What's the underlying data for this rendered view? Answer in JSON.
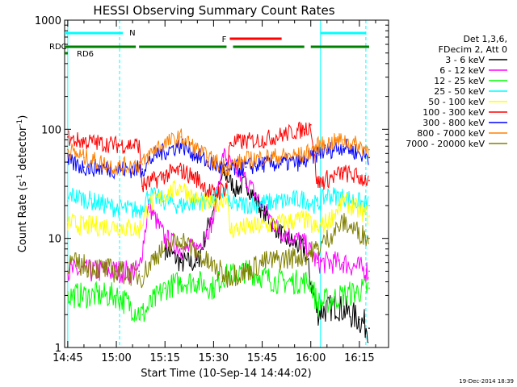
{
  "chart_data": {
    "type": "line",
    "title": "HESSI Observing Summary Count Rates",
    "xlabel": "Start Time (10-Sep-14 14:44:02)",
    "ylabel": "Count Rate (s⁻¹ detector⁻¹)",
    "y_scale": "log",
    "ylim": [
      1,
      1000
    ],
    "xlim": [
      "14:44:02",
      "16:24:00"
    ],
    "x_ticks": [
      "14:45",
      "15:00",
      "15:15",
      "15:30",
      "15:45",
      "16:00",
      "16:15"
    ],
    "y_ticks": [
      "1",
      "10",
      "100",
      "1000"
    ],
    "grid": false,
    "legend_position": "right",
    "legend_header": [
      "Det 1,3,6,",
      "FDecim 2, Att 0"
    ],
    "series": [
      {
        "name": "3 - 6 keV",
        "color": "#000000",
        "x": [
          "14:45",
          "15:00",
          "15:10",
          "15:15",
          "15:20",
          "15:25",
          "15:28",
          "15:33",
          "15:37",
          "15:40",
          "15:45",
          "15:52",
          "15:58",
          "16:02",
          "16:08",
          "16:15",
          "16:18"
        ],
        "y": [
          null,
          null,
          null,
          8,
          6,
          6,
          12,
          40,
          28,
          32,
          18,
          10,
          8,
          2.1,
          2.4,
          1.8,
          1.5
        ]
      },
      {
        "name": "6 - 12 keV",
        "color": "#ff00ff",
        "x": [
          "14:45",
          "15:00",
          "15:07",
          "15:10",
          "15:15",
          "15:20",
          "15:25",
          "15:30",
          "15:33",
          "15:37",
          "15:40",
          "15:45",
          "15:50",
          "15:58",
          "16:02",
          "16:10",
          "16:18"
        ],
        "y": [
          5,
          5,
          5,
          20,
          10,
          8,
          8,
          15,
          60,
          40,
          35,
          20,
          12,
          9,
          6,
          6,
          5
        ]
      },
      {
        "name": "12 - 25 keV",
        "color": "#00ff00",
        "x": [
          "14:45",
          "15:00",
          "15:08",
          "15:15",
          "15:20",
          "15:25",
          "15:30",
          "15:33",
          "15:40",
          "15:50",
          "16:00",
          "16:02",
          "16:10",
          "16:18"
        ],
        "y": [
          3,
          3,
          2,
          3.5,
          4,
          4,
          3.5,
          4.5,
          5,
          4,
          4,
          2.5,
          3,
          3.5
        ]
      },
      {
        "name": "25 - 50 keV",
        "color": "#00ffff",
        "x": [
          "14:45",
          "14:46",
          "15:00",
          "15:07",
          "15:10",
          "15:15",
          "15:20",
          "15:25",
          "15:30",
          "15:34",
          "15:35",
          "15:45",
          "15:58",
          "16:02",
          "16:05",
          "16:10",
          "16:18"
        ],
        "y": [
          22,
          25,
          19,
          18,
          25,
          22,
          20,
          22,
          23,
          28,
          20,
          21,
          23,
          20,
          25,
          24,
          20
        ]
      },
      {
        "name": "50 - 100 keV",
        "color": "#ffff00",
        "x": [
          "14:45",
          "14:50",
          "15:00",
          "15:07",
          "15:10",
          "15:15",
          "15:20",
          "15:25",
          "15:30",
          "15:34",
          "15:35",
          "15:45",
          "15:58",
          "16:02",
          "16:06",
          "16:10",
          "16:18"
        ],
        "y": [
          14,
          13,
          13,
          12,
          20,
          25,
          30,
          22,
          20,
          25,
          12,
          13,
          15,
          12,
          15,
          22,
          16
        ]
      },
      {
        "name": "100 - 300 keV",
        "color": "#ff0000",
        "x": [
          "14:45",
          "14:46",
          "15:00",
          "15:07",
          "15:08",
          "15:15",
          "15:20",
          "15:25",
          "15:30",
          "15:34",
          "15:35",
          "15:45",
          "15:58",
          "16:00",
          "16:02",
          "16:10",
          "16:18"
        ],
        "y": [
          85,
          80,
          72,
          72,
          30,
          38,
          42,
          35,
          25,
          30,
          75,
          80,
          100,
          110,
          32,
          40,
          34
        ]
      },
      {
        "name": "300 - 800 keV",
        "color": "#0000ff",
        "x": [
          "14:45",
          "14:50",
          "15:00",
          "15:08",
          "15:12",
          "15:20",
          "15:28",
          "15:34",
          "15:40",
          "15:45",
          "15:58",
          "16:02",
          "16:10",
          "16:18"
        ],
        "y": [
          50,
          45,
          43,
          43,
          58,
          72,
          50,
          42,
          45,
          48,
          50,
          60,
          70,
          55
        ]
      },
      {
        "name": "800 - 7000 keV",
        "color": "#ff8000",
        "x": [
          "14:45",
          "14:50",
          "15:00",
          "15:08",
          "15:12",
          "15:20",
          "15:28",
          "15:34",
          "15:40",
          "15:45",
          "15:58",
          "16:02",
          "16:10",
          "16:18"
        ],
        "y": [
          65,
          55,
          45,
          48,
          68,
          85,
          55,
          45,
          52,
          55,
          58,
          70,
          80,
          65
        ]
      },
      {
        "name": "7000 - 20000 keV",
        "color": "#808000",
        "x": [
          "14:45",
          "15:00",
          "15:08",
          "15:12",
          "15:20",
          "15:28",
          "15:34",
          "15:40",
          "15:45",
          "15:58",
          "16:02",
          "16:10",
          "16:18"
        ],
        "y": [
          6,
          5,
          4.5,
          7,
          10,
          6,
          4.5,
          5,
          6,
          7,
          8,
          14,
          10
        ]
      }
    ],
    "flag_bars": [
      {
        "label": "N",
        "color": "#00ffff",
        "segments": [
          [
            "14:44",
            "15:02"
          ],
          [
            "16:03",
            "16:17"
          ]
        ]
      },
      {
        "label": "F",
        "color": "#ff0000",
        "segments": [
          [
            "15:35",
            "15:51"
          ]
        ]
      },
      {
        "label": "RDC",
        "color": "#008000",
        "segments": [
          [
            "14:44",
            "15:06"
          ],
          [
            "15:07",
            "15:34"
          ],
          [
            "15:36",
            "15:58"
          ],
          [
            "16:00",
            "16:18"
          ]
        ]
      },
      {
        "label": "RD6",
        "color": "#008000",
        "segments": [
          [
            "14:44",
            "14:45"
          ]
        ]
      }
    ],
    "vertical_markers": [
      {
        "x": "14:45",
        "color": "#00ffff",
        "style": "solid"
      },
      {
        "x": "15:01",
        "color": "#00ffff",
        "style": "dashed"
      },
      {
        "x": "16:03",
        "color": "#00ffff",
        "style": "solid"
      },
      {
        "x": "16:17",
        "color": "#00ffff",
        "style": "dashed"
      }
    ]
  },
  "footer_timestamp": "19-Dec-2014 18:39"
}
